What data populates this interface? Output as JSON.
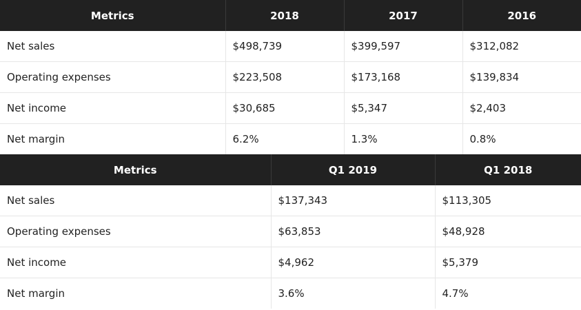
{
  "annual": {
    "headers": [
      "Metrics",
      "2018",
      "2017",
      "2016"
    ],
    "rows": [
      [
        "Net sales",
        "$498,739",
        "$399,597",
        "$312,082"
      ],
      [
        "Operating expenses",
        "$223,508",
        "$173,168",
        "$139,834"
      ],
      [
        "Net income",
        "$30,685",
        "$5,347",
        "$2,403"
      ],
      [
        "Net margin",
        "6.2%",
        "1.3%",
        "0.8%"
      ]
    ]
  },
  "quarterly": {
    "headers": [
      "Metrics",
      "Q1 2019",
      "Q1 2018"
    ],
    "rows": [
      [
        "Net sales",
        "$137,343",
        "$113,305"
      ],
      [
        "Operating expenses",
        "$63,853",
        "$48,928"
      ],
      [
        "Net income",
        "$4,962",
        "$5,379"
      ],
      [
        "Net margin",
        "3.6%",
        "4.7%"
      ]
    ]
  }
}
